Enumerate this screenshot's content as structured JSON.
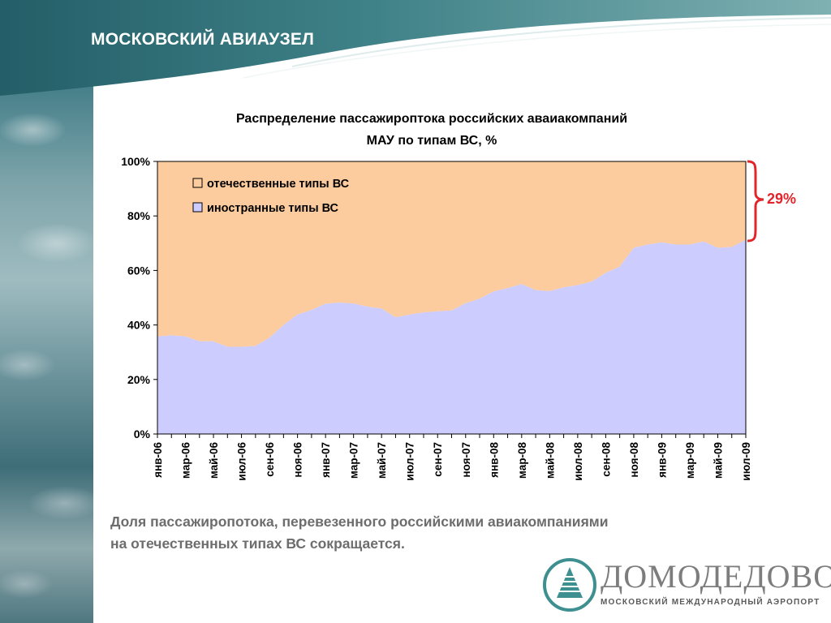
{
  "slide": {
    "title": "МОСКОВСКИЙ АВИАУЗЕЛ",
    "caption_line1": "Доля пассажиропотока, перевезенного российскими авиакомпаниями",
    "caption_line2": "на отечественных типах ВС сокращается.",
    "callout": "29%"
  },
  "logo": {
    "name": "ДОМОДЕДОВО",
    "subtitle": "МОСКОВСКИЙ МЕЖДУНАРОДНЫЙ АЭРОПОРТ"
  },
  "colors": {
    "domestic": "#FCCB9E",
    "foreign": "#CCCCFF",
    "callout": "#E3242B",
    "header_teal": "#3d7d84",
    "caption_gray": "#6d6d6d"
  },
  "chart_data": {
    "type": "area",
    "stacked": true,
    "title_line1": "Распределение пассажироптока российских аваиакомпаний",
    "title_line2": "МАУ по типам  ВС, %",
    "ylim": [
      0,
      100
    ],
    "yticks": [
      "0%",
      "20%",
      "40%",
      "60%",
      "80%",
      "100%"
    ],
    "grid": false,
    "legend_position": "top-left",
    "xtick_labels": [
      "янв-06",
      "мар-06",
      "май-06",
      "июл-06",
      "сен-06",
      "ноя-06",
      "янв-07",
      "мар-07",
      "май-07",
      "июл-07",
      "сен-07",
      "ноя-07",
      "янв-08",
      "мар-08",
      "май-08",
      "июл-08",
      "сен-08",
      "ноя-08",
      "янв-09",
      "мар-09",
      "май-09",
      "июл-09"
    ],
    "x": [
      "янв-06",
      "фев-06",
      "мар-06",
      "апр-06",
      "май-06",
      "июн-06",
      "июл-06",
      "авг-06",
      "сен-06",
      "окт-06",
      "ноя-06",
      "дек-06",
      "янв-07",
      "фев-07",
      "мар-07",
      "апр-07",
      "май-07",
      "июн-07",
      "июл-07",
      "авг-07",
      "сен-07",
      "окт-07",
      "ноя-07",
      "дек-07",
      "янв-08",
      "фев-08",
      "мар-08",
      "апр-08",
      "май-08",
      "июн-08",
      "июл-08",
      "авг-08",
      "сен-08",
      "окт-08",
      "ноя-08",
      "дек-08",
      "янв-09",
      "фев-09",
      "мар-09",
      "апр-09",
      "май-09",
      "июн-09",
      "июл-09"
    ],
    "series": [
      {
        "name": "иностранные типы ВС",
        "values": [
          35.8,
          36.2,
          35.8,
          34.0,
          34.0,
          32.0,
          32.0,
          32.3,
          35.3,
          40.0,
          43.8,
          45.5,
          47.8,
          48.2,
          47.9,
          46.7,
          46.0,
          42.8,
          43.8,
          44.6,
          45.0,
          45.3,
          48.0,
          49.6,
          52.3,
          53.5,
          55.0,
          52.8,
          52.4,
          53.8,
          54.6,
          55.9,
          59.1,
          61.4,
          68.3,
          69.5,
          70.3,
          69.5,
          69.5,
          70.6,
          68.3,
          68.6,
          71.2
        ]
      },
      {
        "name": "отечественные типы ВС",
        "values": [
          64.2,
          63.8,
          64.2,
          66.0,
          66.0,
          68.0,
          68.0,
          67.7,
          64.7,
          60.0,
          56.2,
          54.5,
          52.2,
          51.8,
          52.1,
          53.3,
          54.0,
          57.2,
          56.2,
          55.4,
          55.0,
          54.7,
          52.0,
          50.4,
          47.7,
          46.5,
          45.0,
          47.2,
          47.6,
          46.2,
          45.4,
          44.1,
          40.9,
          38.6,
          31.7,
          30.5,
          29.7,
          30.5,
          30.5,
          29.4,
          31.7,
          31.4,
          28.8
        ]
      }
    ]
  }
}
